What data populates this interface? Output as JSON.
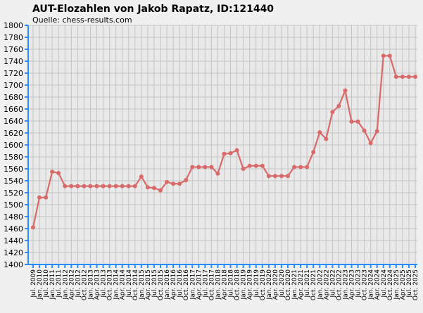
{
  "chart_data": {
    "type": "line",
    "title": "AUT-Elozahlen von Jakob Rapatz, ID:121440",
    "subtitle": "Quelle: chess-results.com",
    "xlabel": "",
    "ylabel": "",
    "ylim": [
      1400,
      1800
    ],
    "ytick_step": 20,
    "grid": true,
    "x_tick_labels": [
      "Jul. 2009",
      "Jan. 2010",
      "Jul. 2010",
      "Jan. 2011",
      "Jul. 2011",
      "Jan. 2012",
      "Apr. 2012",
      "Jul. 2012",
      "Oct. 2012",
      "Jan. 2013",
      "Apr. 2013",
      "Jul. 2013",
      "Oct. 2013",
      "Jan. 2014",
      "Apr. 2014",
      "Jul. 2014",
      "Oct. 2014",
      "Jan. 2015",
      "Apr. 2015",
      "Jul. 2015",
      "Oct. 2015",
      "Jan. 2016",
      "Apr. 2016",
      "Jul. 2016",
      "Oct. 2016",
      "Jan. 2017",
      "Apr. 2017",
      "Jul. 2017",
      "Oct. 2017",
      "Jan. 2018",
      "Apr. 2018",
      "Jul. 2018",
      "Oct. 2018",
      "Jan. 2019",
      "Apr. 2019",
      "Jul. 2019",
      "Oct. 2019",
      "Jan. 2020",
      "Apr. 2020",
      "Jul. 2020",
      "Oct. 2020",
      "Jan. 2021",
      "Apr. 2021",
      "Jul. 2021",
      "Oct. 2021",
      "Jan. 2022",
      "Apr. 2022",
      "Jul. 2022",
      "Oct. 2022",
      "Jan. 2023",
      "Apr. 2023",
      "Jul. 2023",
      "Oct. 2023",
      "Jan. 2024",
      "Apr. 2024",
      "Jul. 2024",
      "Oct. 2024",
      "Jan. 2025",
      "Apr. 2025",
      "Jul. 2025",
      "Oct. 2025"
    ],
    "series": [
      {
        "color": "#d96a6a",
        "values": [
          1462,
          1512,
          1512,
          1555,
          1553,
          1531,
          1531,
          1531,
          1531,
          1531,
          1531,
          1531,
          1531,
          1531,
          1531,
          1531,
          1531,
          1547,
          1529,
          1528,
          1524,
          1538,
          1535,
          1535,
          1541,
          1563,
          1563,
          1563,
          1563,
          1552,
          1585,
          1586,
          1591,
          1560,
          1565,
          1565,
          1565,
          1548,
          1548,
          1548,
          1548,
          1563,
          1563,
          1563,
          1588,
          1621,
          1610,
          1655,
          1665,
          1691,
          1639,
          1639,
          1624,
          1603,
          1623,
          1749,
          1749,
          1714,
          1714,
          1714,
          1714
        ]
      }
    ]
  }
}
